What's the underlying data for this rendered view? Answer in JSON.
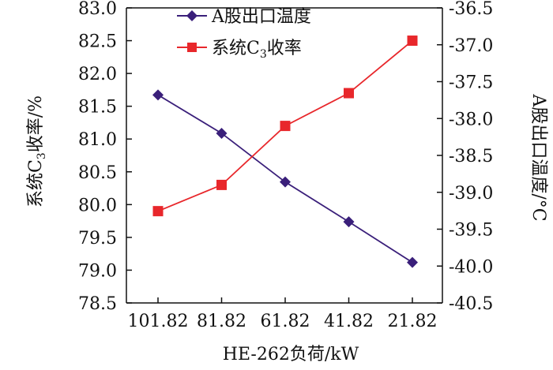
{
  "chart_data": {
    "type": "line",
    "x": [
      "101.82",
      "81.82",
      "61.82",
      "41.82",
      "21.82"
    ],
    "xlabel": "HE-262负荷/kW",
    "ylabel_left": {
      "prefix": "系统C",
      "sub": "3",
      "suffix": "收率/%"
    },
    "ylabel_right": "A股出口温度/°C",
    "ylim_left": [
      78.5,
      83.0
    ],
    "ylim_right": [
      -40.5,
      -36.5
    ],
    "yticks_left": [
      "83.0",
      "82.5",
      "82.0",
      "81.5",
      "81.0",
      "80.5",
      "80.0",
      "79.5",
      "79.0",
      "78.5"
    ],
    "yticks_right": [
      "-36.5",
      "-37.0",
      "-37.5",
      "-38.0",
      "-38.5",
      "-39.0",
      "-39.5",
      "-40.0",
      "-40.5"
    ],
    "series": [
      {
        "name": "A股出口温度",
        "axis": "right",
        "marker": "diamond",
        "color": "#3a1f7a",
        "values": [
          -37.68,
          -38.2,
          -38.86,
          -39.4,
          -39.95
        ]
      },
      {
        "name_prefix": "系统C",
        "name_sub": "3",
        "name_suffix": "收率",
        "axis": "left",
        "marker": "square",
        "color": "#e8272b",
        "values": [
          79.9,
          80.3,
          81.2,
          81.7,
          82.5
        ]
      }
    ],
    "legend_position": "top-left",
    "grid": false
  }
}
